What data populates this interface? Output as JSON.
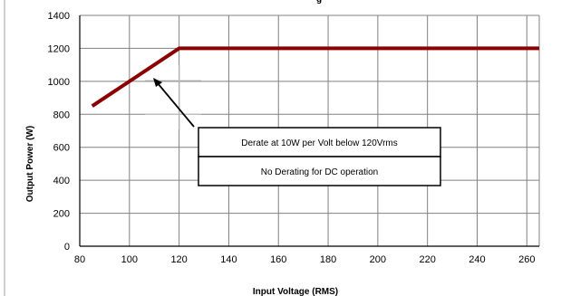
{
  "chart_data": {
    "type": "line",
    "title": "g",
    "xlabel": "Input Voltage (RMS)",
    "ylabel": "Output Power (W)",
    "xlim": [
      80,
      265
    ],
    "ylim": [
      0,
      1400
    ],
    "x_ticks": [
      80,
      100,
      120,
      140,
      160,
      180,
      200,
      220,
      240,
      260
    ],
    "y_ticks": [
      0,
      200,
      400,
      600,
      800,
      1000,
      1200,
      1400
    ],
    "grid": true,
    "series": [
      {
        "x": [
          85,
          120,
          265
        ],
        "y": [
          850,
          1200,
          1200
        ],
        "color": "#8b0000"
      }
    ],
    "annotations": [
      "Derate at 10W per Volt below 120Vrms",
      "No Derating for DC operation"
    ]
  }
}
